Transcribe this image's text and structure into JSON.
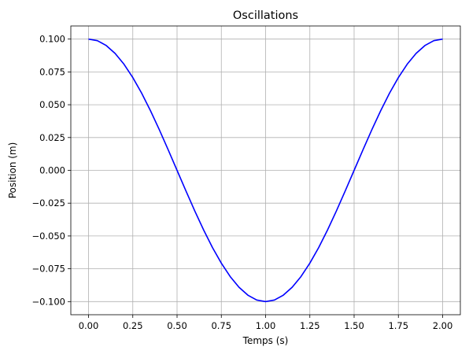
{
  "chart_data": {
    "type": "line",
    "title": "Oscillations",
    "xlabel": "Temps (s)",
    "ylabel": "Position (m)",
    "xlim": [
      -0.1,
      2.1
    ],
    "ylim": [
      -0.11,
      0.11
    ],
    "x_ticks": [
      0.0,
      0.25,
      0.5,
      0.75,
      1.0,
      1.25,
      1.5,
      1.75,
      2.0
    ],
    "x_tick_labels": [
      "0.00",
      "0.25",
      "0.50",
      "0.75",
      "1.00",
      "1.25",
      "1.50",
      "1.75",
      "2.00"
    ],
    "y_ticks": [
      -0.1,
      -0.075,
      -0.05,
      -0.025,
      0.0,
      0.025,
      0.05,
      0.075,
      0.1
    ],
    "y_tick_labels": [
      "−0.100",
      "−0.075",
      "−0.050",
      "−0.025",
      "0.000",
      "0.025",
      "0.050",
      "0.075",
      "0.100"
    ],
    "grid": true,
    "series": [
      {
        "color": "#0000ff",
        "x": [
          0.0,
          0.05,
          0.1,
          0.15,
          0.2,
          0.25,
          0.3,
          0.35,
          0.4,
          0.45,
          0.5,
          0.55,
          0.6,
          0.65,
          0.7,
          0.75,
          0.8,
          0.85,
          0.9,
          0.95,
          1.0,
          1.05,
          1.1,
          1.15,
          1.2,
          1.25,
          1.3,
          1.35,
          1.4,
          1.45,
          1.5,
          1.55,
          1.6,
          1.65,
          1.7,
          1.75,
          1.8,
          1.85,
          1.9,
          1.95,
          2.0
        ],
        "y": [
          0.1,
          0.0988,
          0.0951,
          0.0891,
          0.0809,
          0.0707,
          0.0588,
          0.0454,
          0.0309,
          0.0156,
          0.0,
          -0.0156,
          -0.0309,
          -0.0454,
          -0.0588,
          -0.0707,
          -0.0809,
          -0.0891,
          -0.0951,
          -0.0988,
          -0.1,
          -0.0988,
          -0.0951,
          -0.0891,
          -0.0809,
          -0.0707,
          -0.0588,
          -0.0454,
          -0.0309,
          -0.0156,
          0.0,
          0.0156,
          0.0309,
          0.0454,
          0.0588,
          0.0707,
          0.0809,
          0.0891,
          0.0951,
          0.0988,
          0.1
        ]
      }
    ]
  }
}
